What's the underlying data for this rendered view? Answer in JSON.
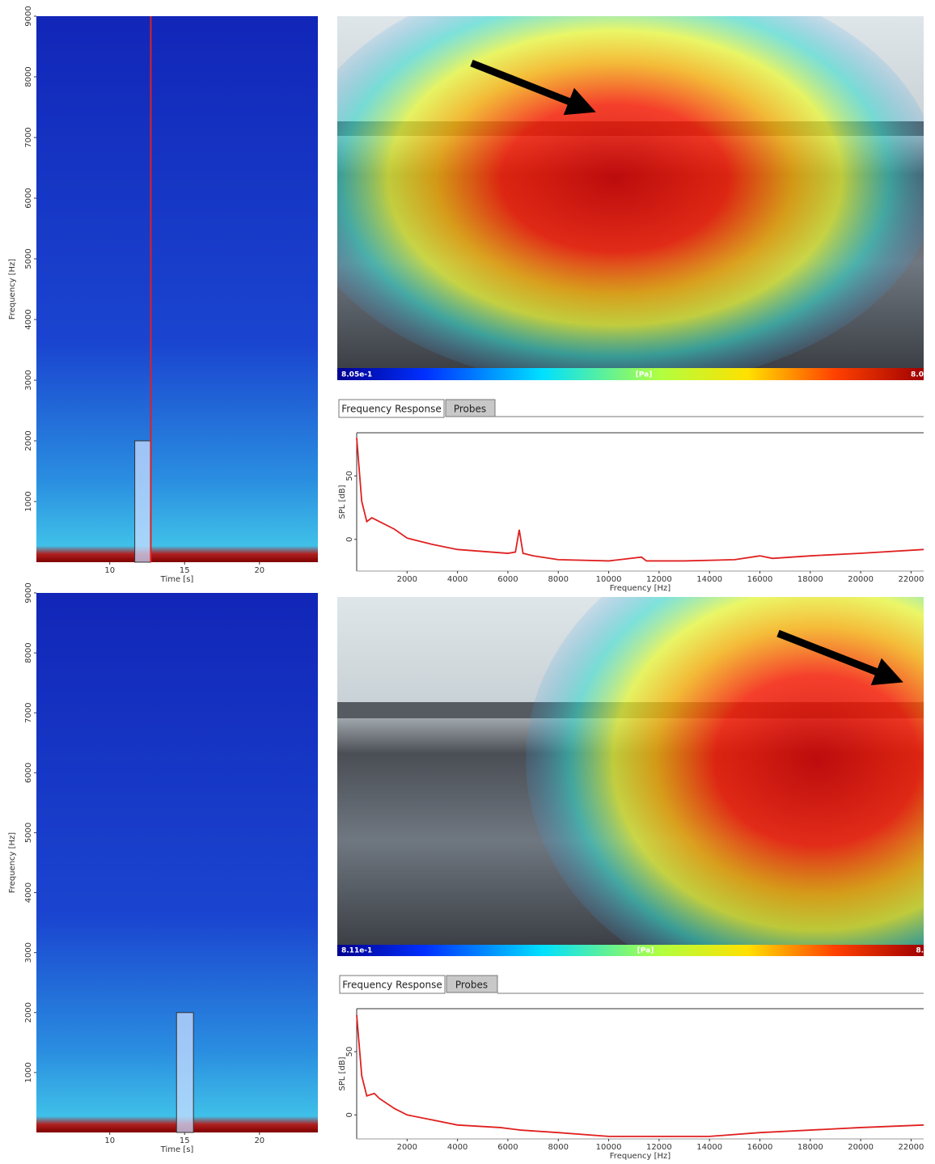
{
  "chart_data": [
    {
      "type": "spectrogram",
      "xlabel": "Time [s]",
      "ylabel": "Frequency [Hz]",
      "xlim": [
        5.1,
        23.9
      ],
      "ylim": [
        0,
        9000
      ],
      "xticks": [
        10,
        15,
        20
      ],
      "yticks": [
        1000,
        2000,
        3000,
        4000,
        5000,
        6000,
        7000,
        8000,
        9000
      ],
      "selection": {
        "x": [
          11.67,
          12.74
        ],
        "y": [
          0,
          2000
        ]
      },
      "cursor_x": 12.74,
      "cursor_color": "#e02020"
    },
    {
      "type": "line",
      "xlabel": "Frequency [Hz]",
      "ylabel": "SPL [dB]",
      "xlim": [
        0,
        22500
      ],
      "ylim": [
        -25,
        84
      ],
      "xticks": [
        2000,
        4000,
        6000,
        8000,
        10000,
        12000,
        14000,
        16000,
        18000,
        20000,
        22000
      ],
      "yticks": [
        0,
        50
      ],
      "x": [
        0,
        200,
        400,
        600,
        1500,
        2000,
        3000,
        4000,
        6000,
        6300,
        6450,
        6600,
        7000,
        8000,
        10000,
        11300,
        11500,
        13000,
        15000,
        16000,
        16500,
        18000,
        20000,
        22500
      ],
      "values": [
        80,
        30,
        14,
        17,
        8,
        1,
        -4,
        -8,
        -11,
        -10,
        7.6,
        -11,
        -13,
        -16,
        -17,
        -14,
        -17,
        -17,
        -16,
        -13,
        -15,
        -13,
        -11,
        -8
      ],
      "color": "#e02020"
    },
    {
      "type": "spectrogram",
      "xlabel": "Time [s]",
      "ylabel": "Frequency [Hz]",
      "xlim": [
        5.1,
        23.9
      ],
      "ylim": [
        0,
        9000
      ],
      "xticks": [
        10,
        15,
        20
      ],
      "yticks": [
        1000,
        2000,
        3000,
        4000,
        5000,
        6000,
        7000,
        8000,
        9000
      ],
      "selection": {
        "x": [
          14.46,
          15.59
        ],
        "y": [
          0,
          2000
        ]
      }
    },
    {
      "type": "line",
      "xlabel": "Frequency [Hz]",
      "ylabel": "SPL [dB]",
      "xlim": [
        0,
        22500
      ],
      "ylim": [
        -19,
        84
      ],
      "xticks": [
        2000,
        4000,
        6000,
        8000,
        10000,
        12000,
        14000,
        16000,
        18000,
        20000,
        22000
      ],
      "yticks": [
        0,
        50
      ],
      "x": [
        0,
        200,
        400,
        700,
        900,
        1500,
        2000,
        3000,
        4000,
        5700,
        6500,
        8000,
        10000,
        12000,
        14000,
        16000,
        18000,
        20000,
        22500
      ],
      "values": [
        79,
        31,
        15,
        17,
        13,
        5,
        0,
        -4,
        -8,
        -10,
        -12,
        -14,
        -17,
        -17,
        -17,
        -14,
        -12,
        -10,
        -8
      ],
      "color": "#e02020"
    }
  ],
  "ui": [
    {
      "colorbar": {
        "min_label": "8.05e-1",
        "unit": "[Pa]",
        "max_label": "8.0"
      },
      "tabs": [
        "Frequency Response",
        "Probes"
      ]
    },
    {
      "colorbar": {
        "min_label": "8.11e-1",
        "unit": "[Pa]",
        "max_label": "8."
      },
      "tabs": [
        "Frequency Response",
        "Probes"
      ]
    }
  ]
}
